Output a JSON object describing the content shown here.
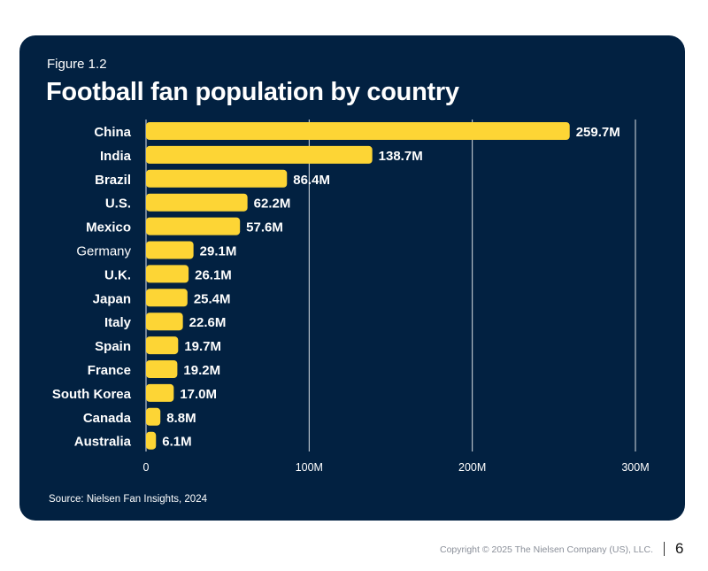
{
  "figure_label": "Figure 1.2",
  "chart_data": {
    "type": "bar",
    "orientation": "horizontal",
    "title": "Football fan population by country",
    "xlabel": "",
    "ylabel": "",
    "categories": [
      "China",
      "India",
      "Brazil",
      "U.S.",
      "Mexico",
      "Germany",
      "U.K.",
      "Japan",
      "Italy",
      "Spain",
      "France",
      "South Korea",
      "Canada",
      "Australia"
    ],
    "values": [
      259.7,
      138.7,
      86.4,
      62.2,
      57.6,
      29.1,
      26.1,
      25.4,
      22.6,
      19.7,
      19.2,
      17.0,
      8.8,
      6.1
    ],
    "value_labels": [
      "259.7M",
      "138.7M",
      "86.4M",
      "62.2M",
      "57.6M",
      "29.1M",
      "26.1M",
      "25.4M",
      "22.6M",
      "19.7M",
      "19.2M",
      "17.0M",
      "8.8M",
      "6.1M"
    ],
    "units": "millions",
    "xlim": [
      0,
      300
    ],
    "xticks": [
      0,
      100,
      200,
      300
    ],
    "xtick_labels": [
      "0",
      "100M",
      "200M",
      "300M"
    ],
    "grid": true,
    "legend": null,
    "colors": {
      "bar": "#FDD535",
      "background": "#022141",
      "text": "#FFFFFF",
      "grid": "#FFFFFF"
    }
  },
  "source": "Source: Nielsen Fan Insights, 2024",
  "footer": {
    "copyright": "Copyright © 2025 The Nielsen Company (US), LLC.",
    "page_number": "6"
  }
}
